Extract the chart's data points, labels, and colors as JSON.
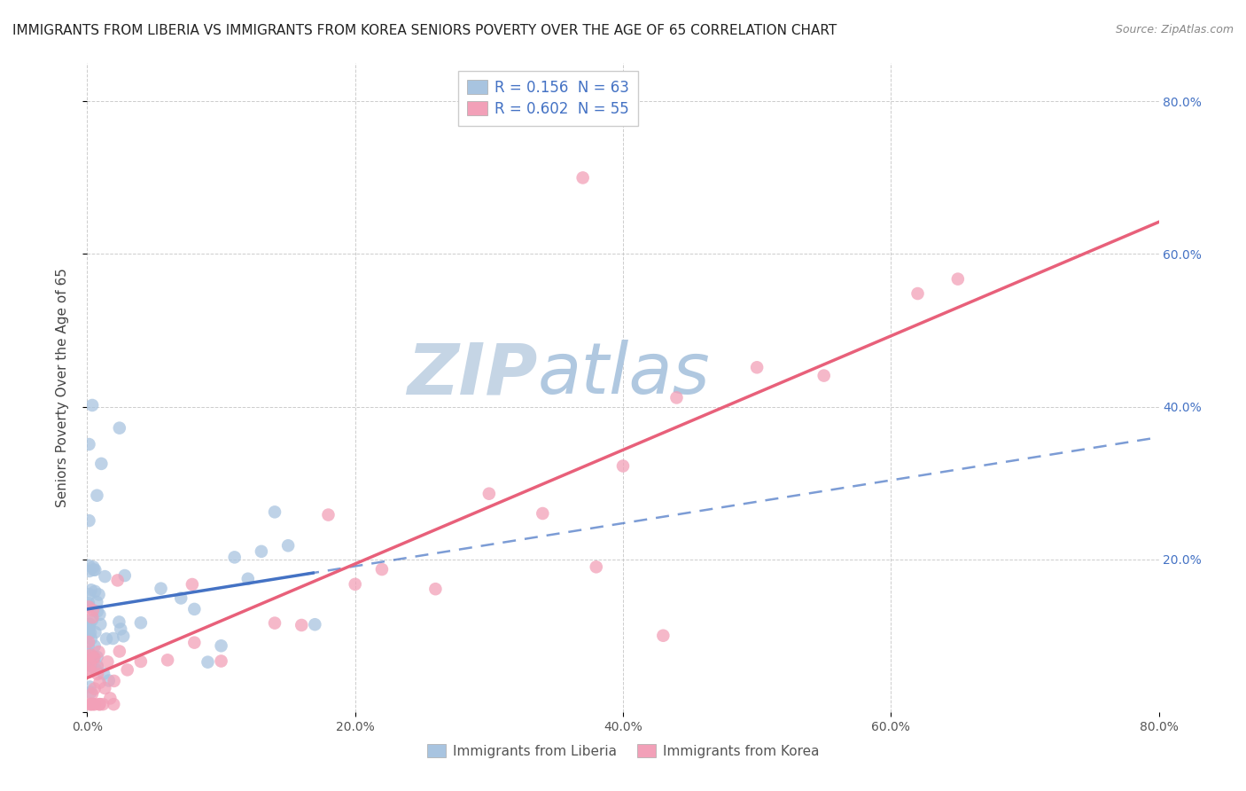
{
  "title": "IMMIGRANTS FROM LIBERIA VS IMMIGRANTS FROM KOREA SENIORS POVERTY OVER THE AGE OF 65 CORRELATION CHART",
  "source": "Source: ZipAtlas.com",
  "ylabel": "Seniors Poverty Over the Age of 65",
  "xlim": [
    0.0,
    0.8
  ],
  "ylim": [
    0.0,
    0.85
  ],
  "liberia_R": 0.156,
  "liberia_N": 63,
  "korea_R": 0.602,
  "korea_N": 55,
  "liberia_color": "#a8c4e0",
  "korea_color": "#f2a0b8",
  "liberia_line_color": "#4472c4",
  "korea_line_color": "#e8607a",
  "watermark_part1": "ZIP",
  "watermark_part2": "atlas",
  "background_color": "#ffffff",
  "grid_color": "#c8c8c8",
  "title_fontsize": 11,
  "axis_label_fontsize": 11,
  "tick_fontsize": 10,
  "legend_fontsize": 12,
  "watermark_color1": "#c5d5e5",
  "watermark_color2": "#b0c8e0",
  "watermark_fontsize": 58
}
